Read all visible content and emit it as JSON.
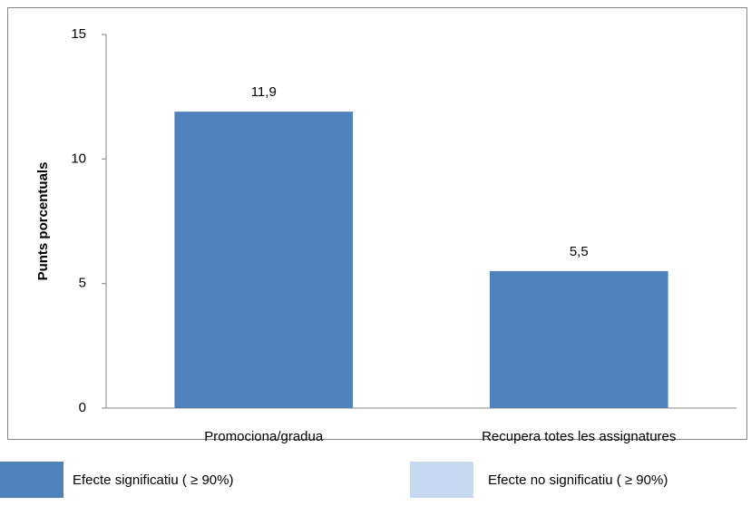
{
  "chart_data": {
    "type": "bar",
    "y_label": "Punts porcentuals",
    "categories": [
      "Promociona/gradua",
      "Recupera totes les assignatures"
    ],
    "values": [
      11.9,
      5.5
    ],
    "value_labels": [
      "11,9",
      "5,5"
    ],
    "color": "#4f81bd",
    "ylim": [
      0,
      15
    ],
    "yticks": [
      0,
      5,
      10,
      15
    ],
    "grid": false,
    "legend": [
      {
        "name": "Efecte significatiu ( ≥ 90%)",
        "color": "#4f81bd"
      },
      {
        "name": "Efecte no significatiu ( ≥ 90%)",
        "color": "#c6d9f1"
      }
    ],
    "legend_position": "bottom"
  }
}
